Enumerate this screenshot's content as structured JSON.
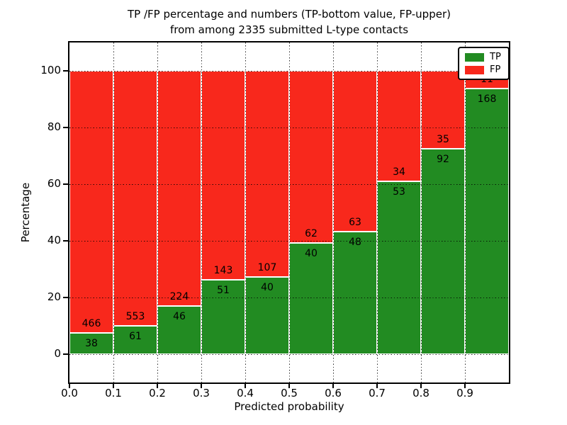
{
  "title": {
    "line1": "TP /FP percentage and numbers (TP-bottom value, FP-upper)",
    "line2": "from among 2335 submitted L-type contacts"
  },
  "chart_data": {
    "type": "bar",
    "stacked": true,
    "title": "TP /FP percentage and numbers (TP-bottom value, FP-upper)\nfrom among 2335 submitted L-type contacts",
    "xlabel": "Predicted probability",
    "ylabel": "Percentage",
    "total_contacts": 2335,
    "bin_width": 0.1,
    "categories": [
      "0.0",
      "0.1",
      "0.2",
      "0.3",
      "0.4",
      "0.5",
      "0.6",
      "0.7",
      "0.8",
      "0.9"
    ],
    "series": [
      {
        "name": "TP",
        "color": "#228b22",
        "counts": [
          38,
          61,
          46,
          51,
          40,
          40,
          48,
          53,
          92,
          168
        ]
      },
      {
        "name": "FP",
        "color": "#f8281c",
        "counts": [
          466,
          553,
          224,
          143,
          107,
          62,
          63,
          34,
          35,
          11
        ]
      }
    ],
    "tp_percent_of_bin": [
      7.5,
      9.9,
      17.0,
      26.3,
      27.2,
      39.2,
      43.2,
      60.9,
      72.4,
      93.9
    ],
    "xticks": [
      "0.0",
      "0.1",
      "0.2",
      "0.3",
      "0.4",
      "0.5",
      "0.6",
      "0.7",
      "0.8",
      "0.9"
    ],
    "yticks": [
      0,
      20,
      40,
      60,
      80,
      100
    ],
    "xlim": [
      0.0,
      1.0
    ],
    "ylim": [
      -10,
      110
    ],
    "grid": true,
    "legend": {
      "position": "upper right",
      "entries": [
        {
          "label": "TP",
          "color": "#228b22"
        },
        {
          "label": "FP",
          "color": "#f8281c"
        }
      ]
    }
  }
}
